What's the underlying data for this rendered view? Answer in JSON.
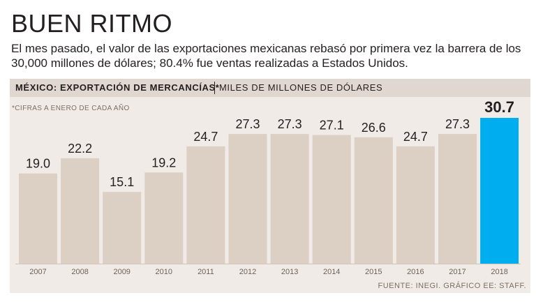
{
  "title": "BUEN RITMO",
  "subtitle": "El mes pasado, el valor de las exportaciones mexicanas rebasó por primera vez la barrera de los 30,000 millones de dólares; 80.4% fue ventas realizadas a Estados Unidos.",
  "header": {
    "main": "MÉXICO: EXPORTACIÓN DE MERCANCÍAS*",
    "unit": "MILES DE MILLONES DE DÓLARES"
  },
  "note": "*CIFRAS A ENERO DE CADA AÑO",
  "source": "FUENTE: INEGI. GRÁFICO EE: STAFF.",
  "colors": {
    "bar": "#dccfc4",
    "highlight": "#00aeef",
    "panel": "#f0ebe6",
    "header": "#e0d8d0"
  },
  "chart_data": {
    "type": "bar",
    "title": "MÉXICO: EXPORTACIÓN DE MERCANCÍAS*",
    "ylabel": "MILES DE MILLONES DE DÓLARES",
    "xlabel": "",
    "categories": [
      "2007",
      "2008",
      "2009",
      "2010",
      "2011",
      "2012",
      "2013",
      "2014",
      "2015",
      "2016",
      "2017",
      "2018"
    ],
    "values": [
      19.0,
      22.2,
      15.1,
      19.2,
      24.7,
      27.3,
      27.3,
      27.1,
      26.6,
      24.7,
      27.3,
      30.7
    ],
    "labels": [
      "19.0",
      "22.2",
      "15.1",
      "19.2",
      "24.7",
      "27.3",
      "27.3",
      "27.1",
      "26.6",
      "24.7",
      "27.3",
      "30.7"
    ],
    "highlight_index": 11,
    "ylim": [
      0,
      30.7
    ],
    "grid": false
  }
}
